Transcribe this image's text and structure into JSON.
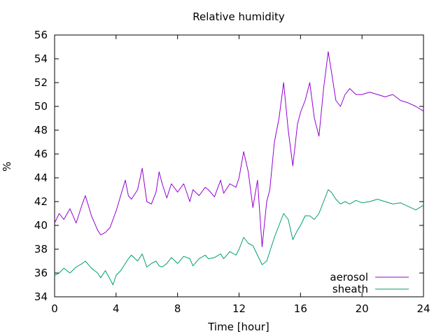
{
  "chart_data": {
    "type": "line",
    "title": "Relative humidity",
    "xlabel": "Time [hour]",
    "ylabel": "%",
    "xlim": [
      0,
      24
    ],
    "ylim": [
      34,
      56
    ],
    "xticks": [
      0,
      4,
      8,
      12,
      16,
      20,
      24
    ],
    "yticks": [
      34,
      36,
      38,
      40,
      42,
      44,
      46,
      48,
      50,
      52,
      54,
      56
    ],
    "grid": false,
    "legend_position": "bottom-right",
    "series": [
      {
        "name": "aerosol",
        "color": "#9400d3",
        "x": [
          0,
          0.3,
          0.6,
          1.0,
          1.4,
          1.8,
          2.0,
          2.4,
          2.8,
          3.0,
          3.3,
          3.6,
          3.8,
          4.0,
          4.3,
          4.6,
          4.8,
          5.0,
          5.4,
          5.7,
          6.0,
          6.3,
          6.6,
          6.8,
          7.0,
          7.3,
          7.6,
          8.0,
          8.4,
          8.8,
          9.0,
          9.4,
          9.8,
          10.0,
          10.4,
          10.8,
          11.0,
          11.4,
          11.8,
          12.0,
          12.3,
          12.6,
          12.9,
          13.2,
          13.5,
          13.8,
          14.0,
          14.3,
          14.6,
          14.9,
          15.2,
          15.5,
          15.8,
          16.0,
          16.3,
          16.6,
          16.9,
          17.2,
          17.5,
          17.8,
          18.0,
          18.3,
          18.6,
          18.9,
          19.2,
          19.6,
          20.0,
          20.5,
          21.0,
          21.5,
          22.0,
          22.5,
          23.0,
          23.5,
          24.0
        ],
        "y": [
          40.2,
          41.0,
          40.5,
          41.4,
          40.2,
          41.8,
          42.5,
          40.8,
          39.6,
          39.2,
          39.4,
          39.8,
          40.5,
          41.2,
          42.5,
          43.8,
          42.5,
          42.2,
          43.0,
          44.8,
          42.0,
          41.8,
          42.8,
          44.5,
          43.5,
          42.3,
          43.5,
          42.8,
          43.5,
          42.0,
          43.0,
          42.5,
          43.2,
          43.0,
          42.4,
          43.8,
          42.7,
          43.5,
          43.2,
          44.0,
          46.2,
          44.5,
          41.5,
          43.8,
          38.2,
          42.0,
          43.0,
          47.0,
          49.0,
          52.0,
          48.0,
          45.0,
          48.5,
          49.5,
          50.5,
          52.0,
          49.0,
          47.5,
          51.5,
          54.6,
          53.0,
          50.5,
          50.0,
          51.0,
          51.5,
          51.0,
          51.0,
          51.2,
          51.0,
          50.8,
          51.0,
          50.5,
          50.3,
          50.0,
          49.6
        ]
      },
      {
        "name": "sheath",
        "color": "#009e73",
        "x": [
          0,
          0.3,
          0.6,
          1.0,
          1.4,
          1.8,
          2.0,
          2.4,
          2.8,
          3.0,
          3.3,
          3.6,
          3.8,
          4.0,
          4.3,
          4.6,
          4.8,
          5.0,
          5.4,
          5.7,
          6.0,
          6.3,
          6.6,
          6.8,
          7.0,
          7.3,
          7.6,
          8.0,
          8.4,
          8.8,
          9.0,
          9.4,
          9.8,
          10.0,
          10.4,
          10.8,
          11.0,
          11.4,
          11.8,
          12.0,
          12.3,
          12.6,
          12.9,
          13.2,
          13.5,
          13.8,
          14.0,
          14.3,
          14.6,
          14.9,
          15.2,
          15.5,
          15.8,
          16.0,
          16.3,
          16.6,
          16.9,
          17.2,
          17.5,
          17.8,
          18.0,
          18.3,
          18.6,
          18.9,
          19.2,
          19.6,
          20.0,
          20.5,
          21.0,
          21.5,
          22.0,
          22.5,
          23.0,
          23.5,
          24.0
        ],
        "y": [
          35.8,
          36.0,
          36.4,
          36.0,
          36.5,
          36.8,
          37.0,
          36.4,
          36.0,
          35.6,
          36.2,
          35.5,
          35.0,
          35.8,
          36.2,
          36.8,
          37.2,
          37.5,
          37.0,
          37.6,
          36.5,
          36.8,
          37.0,
          36.6,
          36.5,
          36.8,
          37.3,
          36.8,
          37.4,
          37.2,
          36.6,
          37.2,
          37.5,
          37.2,
          37.3,
          37.6,
          37.2,
          37.8,
          37.5,
          38.0,
          39.0,
          38.5,
          38.3,
          37.5,
          36.7,
          37.0,
          37.8,
          39.0,
          40.0,
          41.0,
          40.5,
          38.8,
          39.6,
          40.0,
          40.8,
          40.8,
          40.5,
          41.0,
          42.0,
          43.0,
          42.8,
          42.2,
          41.8,
          42.0,
          41.8,
          42.1,
          41.9,
          42.0,
          42.2,
          42.0,
          41.8,
          41.9,
          41.6,
          41.3,
          41.7
        ]
      }
    ]
  }
}
